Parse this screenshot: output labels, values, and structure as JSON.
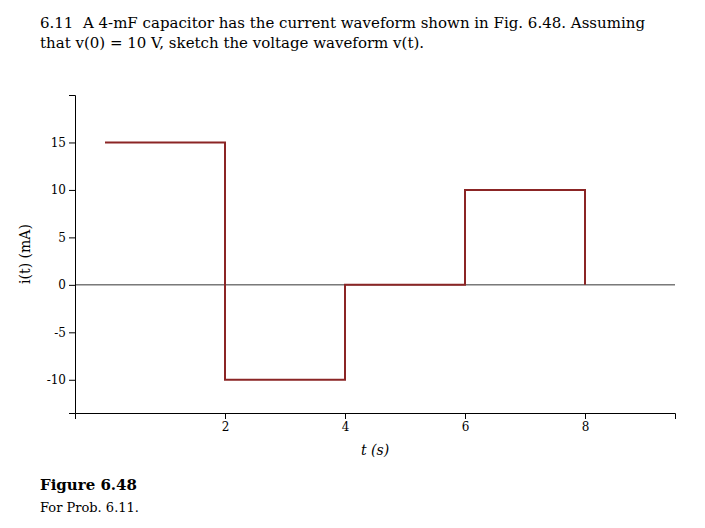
{
  "chart_data": {
    "type": "step",
    "title": "6.11  A 4-mF capacitor has the current waveform shown in Fig. 6.48. Assuming that v(0) = 10 V, sketch the voltage waveform v(t).",
    "xlabel": "t (s)",
    "ylabel": "i(t) (mA)",
    "x": [
      0,
      0,
      2,
      2,
      4,
      4,
      6,
      6,
      8,
      8
    ],
    "values": [
      15,
      15,
      15,
      -10,
      -10,
      0,
      0,
      10,
      10,
      0
    ],
    "color": "#8B2525",
    "xlim": [
      -0.5,
      9.5
    ],
    "ylim": [
      -13.5,
      20
    ],
    "xticks": [
      2,
      4,
      6,
      8
    ],
    "yticks": [
      -10,
      -5,
      0,
      5,
      10,
      15
    ],
    "grid": false,
    "annotations": [
      "Figure 6.48",
      "For Prob. 6.11."
    ]
  }
}
